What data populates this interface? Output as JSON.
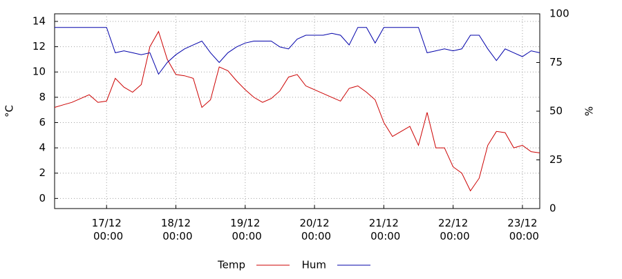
{
  "chart_data": {
    "type": "line",
    "y_label": "°C",
    "y2_label": "%",
    "x": [
      "16/12 06:00",
      "16/12 09:00",
      "16/12 12:00",
      "16/12 15:00",
      "16/12 18:00",
      "16/12 21:00",
      "17/12 00:00",
      "17/12 03:00",
      "17/12 06:00",
      "17/12 09:00",
      "17/12 12:00",
      "17/12 15:00",
      "17/12 18:00",
      "17/12 21:00",
      "18/12 00:00",
      "18/12 03:00",
      "18/12 06:00",
      "18/12 09:00",
      "18/12 12:00",
      "18/12 15:00",
      "18/12 18:00",
      "18/12 21:00",
      "19/12 00:00",
      "19/12 03:00",
      "19/12 06:00",
      "19/12 09:00",
      "19/12 12:00",
      "19/12 15:00",
      "19/12 18:00",
      "19/12 21:00",
      "20/12 00:00",
      "20/12 03:00",
      "20/12 06:00",
      "20/12 09:00",
      "20/12 12:00",
      "20/12 15:00",
      "20/12 18:00",
      "20/12 21:00",
      "21/12 00:00",
      "21/12 03:00",
      "21/12 06:00",
      "21/12 09:00",
      "21/12 12:00",
      "21/12 15:00",
      "21/12 18:00",
      "21/12 21:00",
      "22/12 00:00",
      "22/12 03:00",
      "22/12 06:00",
      "22/12 09:00",
      "22/12 12:00",
      "22/12 15:00",
      "22/12 18:00",
      "22/12 21:00",
      "23/12 00:00",
      "23/12 03:00",
      "23/12 06:00"
    ],
    "series": [
      {
        "name": "Temp",
        "color": "#cc0000",
        "axis": "y",
        "values": [
          7.2,
          7.4,
          7.6,
          7.9,
          8.2,
          7.6,
          7.7,
          9.5,
          8.8,
          8.4,
          9.0,
          12.0,
          13.2,
          11.0,
          9.8,
          9.7,
          9.5,
          7.2,
          7.8,
          10.4,
          10.1,
          9.3,
          8.6,
          8.0,
          7.6,
          7.9,
          8.5,
          9.6,
          9.8,
          8.9,
          8.6,
          8.3,
          8.0,
          7.7,
          8.7,
          8.9,
          8.4,
          7.8,
          6.0,
          4.9,
          5.3,
          5.7,
          4.2,
          6.8,
          4.0,
          4.0,
          2.5,
          2.0,
          0.6,
          1.6,
          4.2,
          5.3,
          5.2,
          4.0,
          4.2,
          3.7,
          3.6
        ]
      },
      {
        "name": "Hum",
        "color": "#0000aa",
        "axis": "y2",
        "values": [
          93,
          93,
          93,
          93,
          93,
          93,
          93,
          80,
          81,
          80,
          79,
          80,
          69,
          75,
          79,
          82,
          84,
          86,
          80,
          75,
          80,
          83,
          85,
          86,
          86,
          86,
          83,
          82,
          87,
          89,
          89,
          89,
          90,
          89,
          84,
          93,
          93,
          85,
          93,
          93,
          93,
          93,
          93,
          80,
          81,
          82,
          81,
          82,
          89,
          89,
          82,
          76,
          82,
          80,
          78,
          81,
          80
        ]
      }
    ],
    "xlim": [
      "16/12 06:00",
      "23/12 06:00"
    ],
    "xticks": [
      "17/12 00:00",
      "18/12 00:00",
      "19/12 00:00",
      "20/12 00:00",
      "21/12 00:00",
      "22/12 00:00",
      "23/12 00:00"
    ],
    "ylim": [
      -0.8,
      14.6
    ],
    "yticks": [
      0,
      2,
      4,
      6,
      8,
      10,
      12,
      14
    ],
    "y2lim": [
      0,
      100
    ],
    "y2ticks": [
      0,
      25,
      50,
      75,
      100
    ],
    "grid": true,
    "legend": "bottom"
  }
}
